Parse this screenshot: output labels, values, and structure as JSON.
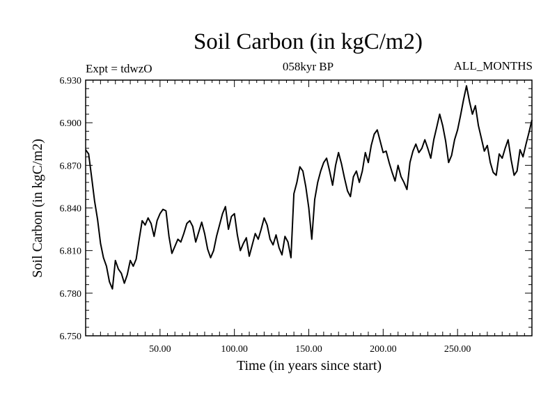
{
  "chart_data": {
    "type": "line",
    "title": "Soil Carbon (in kgC/m2)",
    "subtitle": "058kyr BP",
    "left_label": "Expt = tdwzO",
    "right_label": "ALL_MONTHS",
    "xlabel": "Time (in years since start)",
    "ylabel": "Soil Carbon (in kgC/m2)",
    "xlim": [
      0,
      300
    ],
    "ylim": [
      6.75,
      6.93
    ],
    "x_ticks": [
      50,
      100,
      150,
      200,
      250
    ],
    "x_tick_labels": [
      "50.00",
      "100.00",
      "150.00",
      "200.00",
      "250.00"
    ],
    "y_ticks": [
      6.75,
      6.78,
      6.81,
      6.84,
      6.87,
      6.9,
      6.93
    ],
    "y_tick_labels": [
      "6.750",
      "6.780",
      "6.810",
      "6.840",
      "6.870",
      "6.900",
      "6.930"
    ],
    "grid": false,
    "series": [
      {
        "name": "Soil Carbon",
        "x": [
          0,
          2,
          4,
          6,
          8,
          10,
          12,
          14,
          16,
          18,
          20,
          22,
          24,
          26,
          28,
          30,
          32,
          34,
          36,
          38,
          40,
          42,
          44,
          46,
          48,
          50,
          52,
          54,
          56,
          58,
          60,
          62,
          64,
          66,
          68,
          70,
          72,
          74,
          76,
          78,
          80,
          82,
          84,
          86,
          88,
          90,
          92,
          94,
          96,
          98,
          100,
          102,
          104,
          106,
          108,
          110,
          112,
          114,
          116,
          118,
          120,
          122,
          124,
          126,
          128,
          130,
          132,
          134,
          136,
          138,
          140,
          142,
          144,
          146,
          148,
          150,
          152,
          154,
          156,
          158,
          160,
          162,
          164,
          166,
          168,
          170,
          172,
          174,
          176,
          178,
          180,
          182,
          184,
          186,
          188,
          190,
          192,
          194,
          196,
          198,
          200,
          202,
          204,
          206,
          208,
          210,
          212,
          214,
          216,
          218,
          220,
          222,
          224,
          226,
          228,
          230,
          232,
          234,
          236,
          238,
          240,
          242,
          244,
          246,
          248,
          250,
          252,
          254,
          256,
          258,
          260,
          262,
          264,
          266,
          268,
          270,
          272,
          274,
          276,
          278,
          280,
          282,
          284,
          286,
          288,
          290,
          292,
          294,
          296,
          298,
          300
        ],
        "y": [
          6.881,
          6.878,
          6.862,
          6.845,
          6.832,
          6.815,
          6.805,
          6.799,
          6.788,
          6.783,
          6.803,
          6.797,
          6.794,
          6.787,
          6.793,
          6.803,
          6.799,
          6.804,
          6.818,
          6.831,
          6.828,
          6.833,
          6.829,
          6.82,
          6.831,
          6.836,
          6.839,
          6.838,
          6.82,
          6.808,
          6.813,
          6.818,
          6.816,
          6.822,
          6.829,
          6.831,
          6.827,
          6.816,
          6.823,
          6.83,
          6.822,
          6.811,
          6.805,
          6.81,
          6.82,
          6.828,
          6.836,
          6.841,
          6.825,
          6.834,
          6.836,
          6.821,
          6.81,
          6.815,
          6.819,
          6.806,
          6.814,
          6.822,
          6.818,
          6.825,
          6.833,
          6.828,
          6.818,
          6.814,
          6.821,
          6.812,
          6.807,
          6.82,
          6.816,
          6.805,
          6.85,
          6.858,
          6.869,
          6.866,
          6.855,
          6.84,
          6.818,
          6.846,
          6.858,
          6.866,
          6.872,
          6.875,
          6.866,
          6.856,
          6.87,
          6.879,
          6.871,
          6.861,
          6.852,
          6.848,
          6.862,
          6.866,
          6.858,
          6.866,
          6.879,
          6.872,
          6.884,
          6.892,
          6.895,
          6.887,
          6.879,
          6.88,
          6.872,
          6.865,
          6.859,
          6.87,
          6.862,
          6.858,
          6.853,
          6.872,
          6.88,
          6.885,
          6.879,
          6.882,
          6.888,
          6.882,
          6.875,
          6.888,
          6.897,
          6.906,
          6.898,
          6.887,
          6.872,
          6.877,
          6.888,
          6.895,
          6.905,
          6.916,
          6.926,
          6.915,
          6.906,
          6.912,
          6.898,
          6.889,
          6.88,
          6.884,
          6.872,
          6.865,
          6.863,
          6.878,
          6.875,
          6.882,
          6.888,
          6.874,
          6.863,
          6.866,
          6.881,
          6.876,
          6.885,
          6.893,
          6.902
        ]
      }
    ]
  }
}
